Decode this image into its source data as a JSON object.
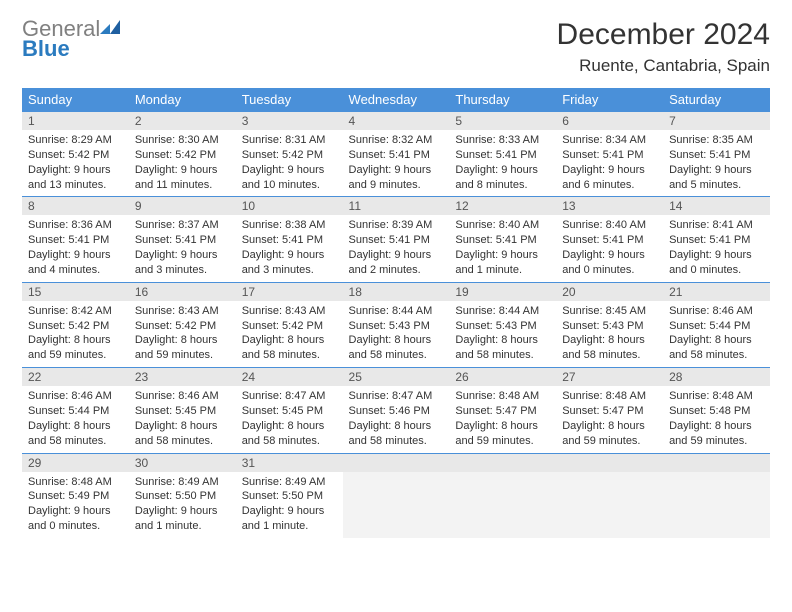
{
  "brand": {
    "part1": "General",
    "part2": "Blue"
  },
  "title": "December 2024",
  "location": "Ruente, Cantabria, Spain",
  "colors": {
    "header_bg": "#4a90d9",
    "header_text": "#ffffff",
    "daynum_bg": "#e8e8e8",
    "row_border": "#4a90d9",
    "logo_gray": "#808080",
    "logo_blue": "#2b7bbf"
  },
  "weekdays": [
    "Sunday",
    "Monday",
    "Tuesday",
    "Wednesday",
    "Thursday",
    "Friday",
    "Saturday"
  ],
  "weeks": [
    [
      {
        "n": "1",
        "sr": "Sunrise: 8:29 AM",
        "ss": "Sunset: 5:42 PM",
        "d1": "Daylight: 9 hours",
        "d2": "and 13 minutes."
      },
      {
        "n": "2",
        "sr": "Sunrise: 8:30 AM",
        "ss": "Sunset: 5:42 PM",
        "d1": "Daylight: 9 hours",
        "d2": "and 11 minutes."
      },
      {
        "n": "3",
        "sr": "Sunrise: 8:31 AM",
        "ss": "Sunset: 5:42 PM",
        "d1": "Daylight: 9 hours",
        "d2": "and 10 minutes."
      },
      {
        "n": "4",
        "sr": "Sunrise: 8:32 AM",
        "ss": "Sunset: 5:41 PM",
        "d1": "Daylight: 9 hours",
        "d2": "and 9 minutes."
      },
      {
        "n": "5",
        "sr": "Sunrise: 8:33 AM",
        "ss": "Sunset: 5:41 PM",
        "d1": "Daylight: 9 hours",
        "d2": "and 8 minutes."
      },
      {
        "n": "6",
        "sr": "Sunrise: 8:34 AM",
        "ss": "Sunset: 5:41 PM",
        "d1": "Daylight: 9 hours",
        "d2": "and 6 minutes."
      },
      {
        "n": "7",
        "sr": "Sunrise: 8:35 AM",
        "ss": "Sunset: 5:41 PM",
        "d1": "Daylight: 9 hours",
        "d2": "and 5 minutes."
      }
    ],
    [
      {
        "n": "8",
        "sr": "Sunrise: 8:36 AM",
        "ss": "Sunset: 5:41 PM",
        "d1": "Daylight: 9 hours",
        "d2": "and 4 minutes."
      },
      {
        "n": "9",
        "sr": "Sunrise: 8:37 AM",
        "ss": "Sunset: 5:41 PM",
        "d1": "Daylight: 9 hours",
        "d2": "and 3 minutes."
      },
      {
        "n": "10",
        "sr": "Sunrise: 8:38 AM",
        "ss": "Sunset: 5:41 PM",
        "d1": "Daylight: 9 hours",
        "d2": "and 3 minutes."
      },
      {
        "n": "11",
        "sr": "Sunrise: 8:39 AM",
        "ss": "Sunset: 5:41 PM",
        "d1": "Daylight: 9 hours",
        "d2": "and 2 minutes."
      },
      {
        "n": "12",
        "sr": "Sunrise: 8:40 AM",
        "ss": "Sunset: 5:41 PM",
        "d1": "Daylight: 9 hours",
        "d2": "and 1 minute."
      },
      {
        "n": "13",
        "sr": "Sunrise: 8:40 AM",
        "ss": "Sunset: 5:41 PM",
        "d1": "Daylight: 9 hours",
        "d2": "and 0 minutes."
      },
      {
        "n": "14",
        "sr": "Sunrise: 8:41 AM",
        "ss": "Sunset: 5:41 PM",
        "d1": "Daylight: 9 hours",
        "d2": "and 0 minutes."
      }
    ],
    [
      {
        "n": "15",
        "sr": "Sunrise: 8:42 AM",
        "ss": "Sunset: 5:42 PM",
        "d1": "Daylight: 8 hours",
        "d2": "and 59 minutes."
      },
      {
        "n": "16",
        "sr": "Sunrise: 8:43 AM",
        "ss": "Sunset: 5:42 PM",
        "d1": "Daylight: 8 hours",
        "d2": "and 59 minutes."
      },
      {
        "n": "17",
        "sr": "Sunrise: 8:43 AM",
        "ss": "Sunset: 5:42 PM",
        "d1": "Daylight: 8 hours",
        "d2": "and 58 minutes."
      },
      {
        "n": "18",
        "sr": "Sunrise: 8:44 AM",
        "ss": "Sunset: 5:43 PM",
        "d1": "Daylight: 8 hours",
        "d2": "and 58 minutes."
      },
      {
        "n": "19",
        "sr": "Sunrise: 8:44 AM",
        "ss": "Sunset: 5:43 PM",
        "d1": "Daylight: 8 hours",
        "d2": "and 58 minutes."
      },
      {
        "n": "20",
        "sr": "Sunrise: 8:45 AM",
        "ss": "Sunset: 5:43 PM",
        "d1": "Daylight: 8 hours",
        "d2": "and 58 minutes."
      },
      {
        "n": "21",
        "sr": "Sunrise: 8:46 AM",
        "ss": "Sunset: 5:44 PM",
        "d1": "Daylight: 8 hours",
        "d2": "and 58 minutes."
      }
    ],
    [
      {
        "n": "22",
        "sr": "Sunrise: 8:46 AM",
        "ss": "Sunset: 5:44 PM",
        "d1": "Daylight: 8 hours",
        "d2": "and 58 minutes."
      },
      {
        "n": "23",
        "sr": "Sunrise: 8:46 AM",
        "ss": "Sunset: 5:45 PM",
        "d1": "Daylight: 8 hours",
        "d2": "and 58 minutes."
      },
      {
        "n": "24",
        "sr": "Sunrise: 8:47 AM",
        "ss": "Sunset: 5:45 PM",
        "d1": "Daylight: 8 hours",
        "d2": "and 58 minutes."
      },
      {
        "n": "25",
        "sr": "Sunrise: 8:47 AM",
        "ss": "Sunset: 5:46 PM",
        "d1": "Daylight: 8 hours",
        "d2": "and 58 minutes."
      },
      {
        "n": "26",
        "sr": "Sunrise: 8:48 AM",
        "ss": "Sunset: 5:47 PM",
        "d1": "Daylight: 8 hours",
        "d2": "and 59 minutes."
      },
      {
        "n": "27",
        "sr": "Sunrise: 8:48 AM",
        "ss": "Sunset: 5:47 PM",
        "d1": "Daylight: 8 hours",
        "d2": "and 59 minutes."
      },
      {
        "n": "28",
        "sr": "Sunrise: 8:48 AM",
        "ss": "Sunset: 5:48 PM",
        "d1": "Daylight: 8 hours",
        "d2": "and 59 minutes."
      }
    ],
    [
      {
        "n": "29",
        "sr": "Sunrise: 8:48 AM",
        "ss": "Sunset: 5:49 PM",
        "d1": "Daylight: 9 hours",
        "d2": "and 0 minutes."
      },
      {
        "n": "30",
        "sr": "Sunrise: 8:49 AM",
        "ss": "Sunset: 5:50 PM",
        "d1": "Daylight: 9 hours",
        "d2": "and 1 minute."
      },
      {
        "n": "31",
        "sr": "Sunrise: 8:49 AM",
        "ss": "Sunset: 5:50 PM",
        "d1": "Daylight: 9 hours",
        "d2": "and 1 minute."
      },
      null,
      null,
      null,
      null
    ]
  ]
}
